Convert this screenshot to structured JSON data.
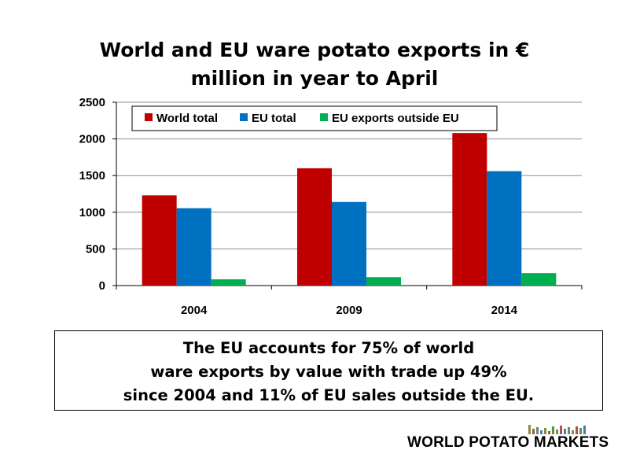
{
  "chart_data": {
    "type": "bar",
    "title_lines": [
      "World and EU ware potato exports in €",
      "million in year to April"
    ],
    "categories": [
      "2004",
      "2009",
      "2014"
    ],
    "series": [
      {
        "name": "World total",
        "color": "#c00000",
        "values": [
          1230,
          1600,
          2080
        ]
      },
      {
        "name": "EU total",
        "color": "#0070c0",
        "values": [
          1055,
          1140,
          1560
        ]
      },
      {
        "name": "EU exports outside EU",
        "color": "#00b050",
        "values": [
          85,
          115,
          170
        ]
      }
    ],
    "ylim": [
      0,
      2500
    ],
    "yticks": [
      "0",
      "500",
      "1000",
      "1500",
      "2000",
      "2500"
    ],
    "grid": true,
    "legend_position": "top"
  },
  "summary_lines": [
    "The EU accounts for 75% of world",
    "ware exports by value with trade up 49%",
    "since 2004 and 11% of EU sales outside the EU."
  ],
  "brand": {
    "text": "WORLD POTATO MARKETS"
  }
}
